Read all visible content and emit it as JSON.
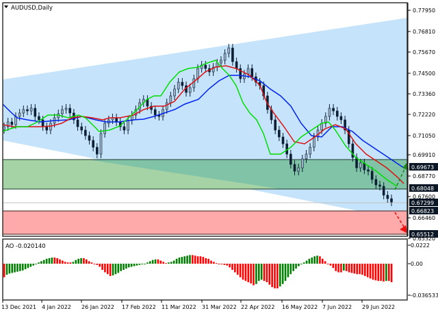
{
  "window": {
    "symbol_title": "AUDUSD,Daily",
    "collapse_icon": "triangle-down-icon"
  },
  "colors": {
    "channel_fill": "#c5e3fb",
    "green_zone": "#a6d3a6",
    "green_zone_overlap": "#80c3a6",
    "red_zone": "#ffaaaa",
    "ma_fast": "#00dd00",
    "ma_mid": "#dd1111",
    "ma_slow": "#0022ee",
    "ao_up": "#008000",
    "ao_down": "#ff0000",
    "candle": "#0c1f33",
    "price_tag_bg": "#0c1726"
  },
  "price_axis": {
    "ticks": [
      "0.77950",
      "0.76810",
      "0.75670",
      "0.74500",
      "0.73360",
      "0.72220",
      "0.71050",
      "0.69910",
      "0.68770",
      "0.67600",
      "0.66460",
      "0.65320"
    ],
    "tags": [
      "0.69673",
      "0.68048",
      "0.67299",
      "0.66823",
      "0.65512"
    ]
  },
  "time_axis": {
    "labels": [
      "13 Dec 2021",
      "4 Jan 2022",
      "26 Jan 2022",
      "17 Feb 2022",
      "11 Mar 2022",
      "31 Mar 2022",
      "22 Apr 2022",
      "16 May 2022",
      "7 Jun 2022",
      "29 Jun 2022"
    ]
  },
  "ao_panel": {
    "title": "AO -0.020140",
    "ticks": [
      "0.0222",
      "0.00",
      "-0.036533"
    ]
  },
  "chart_data": [
    {
      "type": "candlestick",
      "title": "AUDUSD,Daily",
      "xlabel": "",
      "ylabel": "",
      "ylim": [
        0.652,
        0.784
      ],
      "x": [
        "13 Dec 2021",
        "4 Jan 2022",
        "26 Jan 2022",
        "17 Feb 2022",
        "11 Mar 2022",
        "31 Mar 2022",
        "22 Apr 2022",
        "16 May 2022",
        "7 Jun 2022",
        "29 Jun 2022"
      ],
      "approx_close": [
        0.715,
        0.72,
        0.707,
        0.72,
        0.735,
        0.75,
        0.725,
        0.7,
        0.72,
        0.68
      ],
      "series": [
        {
          "name": "MA fast (green)",
          "values": [
            0.714,
            0.719,
            0.715,
            0.718,
            0.732,
            0.749,
            0.736,
            0.698,
            0.718,
            0.683
          ]
        },
        {
          "name": "MA mid (red)",
          "values": [
            0.716,
            0.718,
            0.716,
            0.716,
            0.726,
            0.743,
            0.74,
            0.705,
            0.715,
            0.687
          ]
        },
        {
          "name": "MA slow (blue)",
          "values": [
            0.723,
            0.717,
            0.717,
            0.715,
            0.72,
            0.738,
            0.74,
            0.713,
            0.714,
            0.692
          ]
        }
      ],
      "zones": [
        {
          "name": "resistance zone (green)",
          "from": 0.68048,
          "to": 0.69673
        },
        {
          "name": "support zone (red)",
          "from": 0.65512,
          "to": 0.66823
        }
      ],
      "levels": [
        {
          "name": "current price line",
          "value": 0.67299
        }
      ],
      "channel": {
        "upper_start": 0.76,
        "upper_end": 0.782,
        "lower_start": 0.709,
        "lower_end": 0.672
      },
      "annotations": [
        "green dashed arrow up toward 0.69673",
        "red dashed arrow down toward 0.65512"
      ]
    },
    {
      "type": "bar",
      "title": "AO -0.020140",
      "ylim": [
        -0.036533,
        0.0222
      ],
      "x": [
        "13 Dec 2021",
        "4 Jan 2022",
        "26 Jan 2022",
        "17 Feb 2022",
        "11 Mar 2022",
        "31 Mar 2022",
        "22 Apr 2022",
        "16 May 2022",
        "7 Jun 2022",
        "29 Jun 2022"
      ],
      "values": [
        -0.008,
        0.0,
        0.0075,
        0.005,
        0.0085,
        0.012,
        0.001,
        -0.015,
        0.006,
        -0.02
      ]
    }
  ]
}
